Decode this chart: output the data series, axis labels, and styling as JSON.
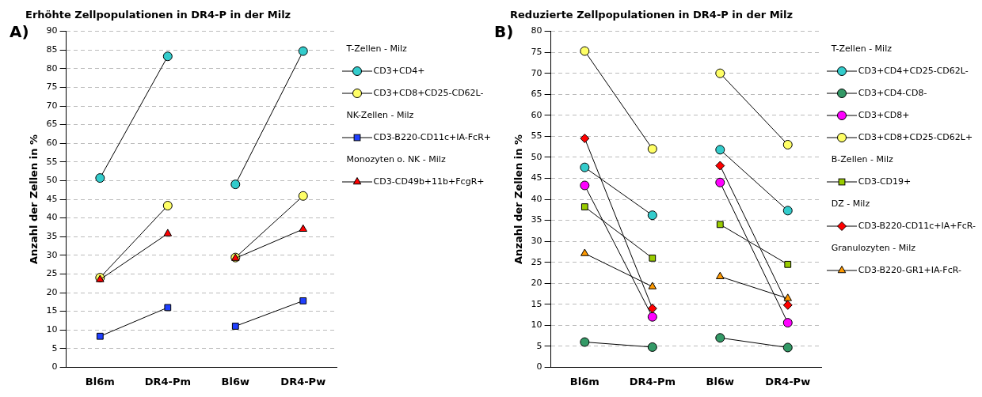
{
  "chart_data": [
    {
      "type": "line",
      "title": "Erhöhte Zellpopulationen in DR4-P in der Milz",
      "ylabel": "Anzahl der Zellen in %",
      "annotations": [
        "A)",
        "T-Zellen - Milz",
        "NK-Zellen - Milz",
        "Monozyten o. NK - Milz"
      ],
      "categories": [
        "Bl6m",
        "DR4-Pm",
        "Bl6w",
        "DR4-Pw"
      ],
      "ylim": [
        0,
        90
      ],
      "yticks": [
        0,
        5,
        10,
        15,
        20,
        25,
        30,
        35,
        40,
        45,
        50,
        55,
        60,
        65,
        70,
        75,
        80,
        85,
        90
      ],
      "grid": "y",
      "legend": "right",
      "line_style": "solid",
      "series": [
        {
          "name": "CD3+CD4+",
          "color": "#33cccc",
          "marker": "circle",
          "values": [
            50.7,
            83.3,
            null,
            null
          ]
        },
        {
          "color": "#33cccc",
          "marker": "circle",
          "values": [
            null,
            null,
            49,
            84.7
          ]
        },
        {
          "name": "CD3+CD8+CD25-CD62L-",
          "color": "#ffff66",
          "marker": "circle",
          "values": [
            24,
            43.3,
            null,
            null
          ]
        },
        {
          "color": "#ffff66",
          "marker": "circle",
          "values": [
            null,
            null,
            29.4,
            45.9
          ]
        },
        {
          "name": "CD3-B220-CD11c+IA-FcR+",
          "color": "#1f3fff",
          "marker": "square",
          "values": [
            8.3,
            16,
            null,
            null
          ]
        },
        {
          "color": "#1f3fff",
          "marker": "square",
          "values": [
            null,
            null,
            11,
            17.8
          ]
        },
        {
          "name": "CD3-CD49b+11b+FcgR+",
          "color": "#ff0000",
          "marker": "triangle",
          "values": [
            23.5,
            35.8,
            null,
            null
          ]
        },
        {
          "color": "#ff0000",
          "marker": "triangle",
          "values": [
            null,
            null,
            29.2,
            37
          ]
        }
      ]
    },
    {
      "type": "line",
      "title": "Reduzierte Zellpopulationen in DR4-P in der Milz",
      "ylabel": "Anzahl der Zellen in %",
      "annotations": [
        "B)",
        "T-Zellen - Milz",
        "B-Zellen - Milz",
        "DZ - Milz",
        "Granulozyten - Milz"
      ],
      "categories": [
        "Bl6m",
        "DR4-Pm",
        "Bl6w",
        "DR4-Pw"
      ],
      "ylim": [
        0,
        80
      ],
      "yticks": [
        0,
        5,
        10,
        15,
        20,
        25,
        30,
        35,
        40,
        45,
        50,
        55,
        60,
        65,
        70,
        75,
        80
      ],
      "grid": "y",
      "legend": "right",
      "line_style": "solid",
      "series": [
        {
          "name": "CD3+CD4+CD25-CD62L-",
          "color": "#33cccc",
          "marker": "circle",
          "values": [
            47.6,
            36.2,
            null,
            null
          ]
        },
        {
          "color": "#33cccc",
          "marker": "circle",
          "values": [
            null,
            null,
            51.8,
            37.3
          ]
        },
        {
          "name": "CD3+CD4-CD8-",
          "color": "#339966",
          "marker": "circle",
          "values": [
            6,
            4.8,
            null,
            null
          ]
        },
        {
          "color": "#339966",
          "marker": "circle",
          "values": [
            null,
            null,
            7,
            4.7
          ]
        },
        {
          "name": "CD3+CD8+",
          "color": "#ff00ff",
          "marker": "circle",
          "values": [
            43.3,
            12,
            null,
            null
          ]
        },
        {
          "color": "#ff00ff",
          "marker": "circle",
          "values": [
            null,
            null,
            44,
            10.6
          ]
        },
        {
          "name": "CD3+CD8+CD25-CD62L+",
          "color": "#ffff66",
          "marker": "circle",
          "values": [
            75.3,
            52,
            null,
            null
          ]
        },
        {
          "color": "#ffff66",
          "marker": "circle",
          "values": [
            null,
            null,
            70,
            53
          ]
        },
        {
          "name": "CD3-CD19+",
          "color": "#99cc00",
          "marker": "square",
          "values": [
            38.2,
            26,
            null,
            null
          ]
        },
        {
          "color": "#99cc00",
          "marker": "square",
          "values": [
            null,
            null,
            34,
            24.5
          ]
        },
        {
          "name": "CD3-B220-CD11c+IA+FcR-",
          "color": "#ff0000",
          "marker": "diamond",
          "values": [
            54.5,
            14,
            null,
            null
          ]
        },
        {
          "color": "#ff0000",
          "marker": "diamond",
          "values": [
            null,
            null,
            48,
            14.8
          ]
        },
        {
          "name": "CD3-B220-GR1+IA-FcR-",
          "color": "#ff9900",
          "marker": "triangle",
          "values": [
            27.1,
            19.2,
            null,
            null
          ]
        },
        {
          "color": "#ff9900",
          "marker": "triangle",
          "values": [
            null,
            null,
            21.6,
            16.4
          ]
        }
      ]
    }
  ]
}
